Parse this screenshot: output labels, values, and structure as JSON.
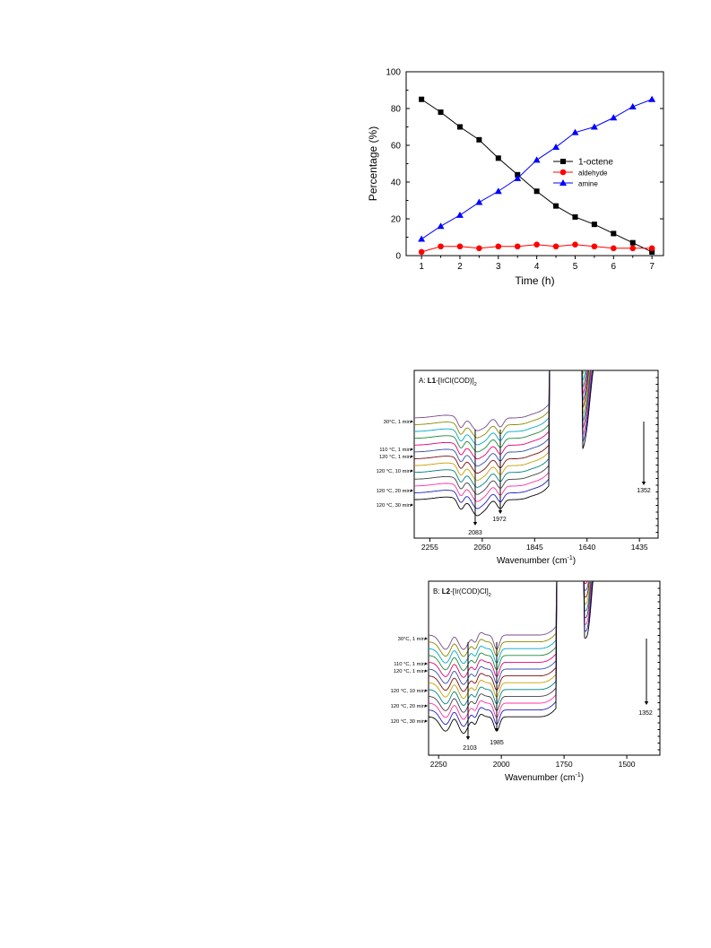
{
  "chart_data": [
    {
      "type": "line",
      "title": "",
      "xlabel": "Time (h)",
      "ylabel": "Percentage (%)",
      "xlim": [
        0.6,
        7.3
      ],
      "ylim": [
        0,
        100
      ],
      "xticks": [
        1,
        2,
        3,
        4,
        5,
        6,
        7
      ],
      "yticks": [
        0,
        20,
        40,
        60,
        80,
        100
      ],
      "legend_position": "right",
      "x": [
        1,
        1.5,
        2,
        2.5,
        3,
        3.5,
        4,
        4.5,
        5,
        5.5,
        6,
        6.5,
        7
      ],
      "series": [
        {
          "name": "1-octene",
          "color": "#000000",
          "marker": "square",
          "values": [
            85,
            78,
            70,
            63,
            53,
            44,
            35,
            27,
            21,
            17,
            12,
            7,
            2
          ]
        },
        {
          "name": "aldehyde",
          "color": "#ff0000",
          "marker": "circle",
          "values": [
            2,
            5,
            5,
            4,
            5,
            5,
            6,
            5,
            6,
            5,
            4,
            4,
            4
          ]
        },
        {
          "name": "amine",
          "color": "#0000ff",
          "marker": "triangle",
          "values": [
            9,
            16,
            22,
            29,
            35,
            42,
            52,
            59,
            67,
            70,
            75,
            81,
            85
          ]
        }
      ]
    },
    {
      "type": "line",
      "title_plain": "A: ",
      "title_bold": "L1",
      "title_rest": "-[IrCl(COD)]",
      "title_sub": "2",
      "xlabel": "Wavenumber (cm",
      "xlabel_sup": "-1",
      "xlabel_end": ")",
      "x_reversed": true,
      "xticks": [
        2255,
        2050,
        1845,
        1640,
        1435
      ],
      "legend_labels": [
        {
          "text": "30°C, 1 min",
          "color": "#000000"
        },
        {
          "text": "110 °C, 1 min",
          "color": "#ff0000"
        },
        {
          "text": "120 °C, 1 min",
          "color": "#000000"
        },
        {
          "text": "120 °C, 10 min",
          "color": "#000000"
        },
        {
          "text": "120 °C, 20 min",
          "color": "#000000"
        },
        {
          "text": "120 °C, 30 min",
          "color": "#000000"
        }
      ],
      "annotations": [
        {
          "text": "2083",
          "color": "#ff0000"
        },
        {
          "text": "1972",
          "color": "#000000"
        },
        {
          "text": "1352",
          "color": "#000000"
        }
      ]
    },
    {
      "type": "line",
      "title_plain": "B: ",
      "title_bold": "L2",
      "title_rest": "-[Ir(COD)Cl]",
      "title_sub": "2",
      "xlabel": "Wavenumber (cm",
      "xlabel_sup": "-1",
      "xlabel_end": ")",
      "x_reversed": true,
      "xticks": [
        2250,
        2000,
        1750,
        1500
      ],
      "legend_labels": [
        {
          "text": "30°C, 1 min",
          "color": "#000000"
        },
        {
          "text": "110 °C, 1 min",
          "color": "#000000"
        },
        {
          "text": "120 °C, 1 min",
          "color": "#000000"
        },
        {
          "text": "120 °C, 10 min",
          "color": "#ff0000"
        },
        {
          "text": "120 °C, 20 min",
          "color": "#000000"
        },
        {
          "text": "120 °C, 30 min",
          "color": "#000000"
        }
      ],
      "annotations": [
        {
          "text": "2103",
          "color": "#ff0000"
        },
        {
          "text": "1985",
          "color": "#000000"
        },
        {
          "text": "1352",
          "color": "#000000"
        }
      ]
    }
  ],
  "spectra_colors": [
    "#7a4a8a",
    "#8a8a00",
    "#00a8c8",
    "#1a8a3a",
    "#e0007a",
    "#3050a8",
    "#7a1010",
    "#c8a000",
    "#008080",
    "#404040",
    "#ff30a0",
    "#2020c0",
    "#000000"
  ]
}
